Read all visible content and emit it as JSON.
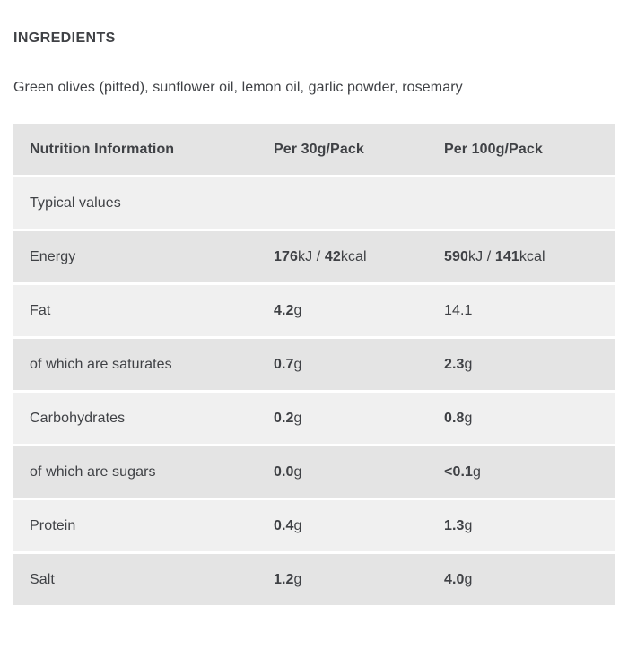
{
  "page": {
    "background": "#ffffff",
    "text_color": "#3f4145"
  },
  "ingredients": {
    "heading": "INGREDIENTS",
    "text": "Green olives (pitted), sunflower oil, lemon oil, garlic powder, rosemary"
  },
  "nutrition_table": {
    "colors": {
      "row_dark": "#e4e4e4",
      "row_light": "#f0f0f0"
    },
    "header": {
      "col_label": "Nutrition Information",
      "col_per30": "Per 30g/Pack",
      "col_per100": "Per 100g/Pack"
    },
    "rows": [
      {
        "label": "Typical values",
        "per30": [],
        "per100": []
      },
      {
        "label": "Energy",
        "per30": [
          {
            "t": "176",
            "b": true
          },
          {
            "t": "kJ / ",
            "b": false
          },
          {
            "t": "42",
            "b": true
          },
          {
            "t": "kcal",
            "b": false
          }
        ],
        "per100": [
          {
            "t": "590",
            "b": true
          },
          {
            "t": "kJ / ",
            "b": false
          },
          {
            "t": "141",
            "b": true
          },
          {
            "t": "kcal",
            "b": false
          }
        ]
      },
      {
        "label": "Fat",
        "per30": [
          {
            "t": "4.2",
            "b": true
          },
          {
            "t": "g",
            "b": false
          }
        ],
        "per100": [
          {
            "t": "14.1",
            "b": false
          }
        ]
      },
      {
        "label": "of which are saturates",
        "per30": [
          {
            "t": "0.7",
            "b": true
          },
          {
            "t": "g",
            "b": false
          }
        ],
        "per100": [
          {
            "t": "2.3",
            "b": true
          },
          {
            "t": "g",
            "b": false
          }
        ]
      },
      {
        "label": "Carbohydrates",
        "per30": [
          {
            "t": "0.2",
            "b": true
          },
          {
            "t": "g",
            "b": false
          }
        ],
        "per100": [
          {
            "t": "0.8",
            "b": true
          },
          {
            "t": "g",
            "b": false
          }
        ]
      },
      {
        "label": "of which are sugars",
        "per30": [
          {
            "t": "0.0",
            "b": true
          },
          {
            "t": "g",
            "b": false
          }
        ],
        "per100": [
          {
            "t": "<0.1",
            "b": true
          },
          {
            "t": "g",
            "b": false
          }
        ]
      },
      {
        "label": "Protein",
        "per30": [
          {
            "t": "0.4",
            "b": true
          },
          {
            "t": "g",
            "b": false
          }
        ],
        "per100": [
          {
            "t": "1.3",
            "b": true
          },
          {
            "t": "g",
            "b": false
          }
        ]
      },
      {
        "label": "Salt",
        "per30": [
          {
            "t": "1.2",
            "b": true
          },
          {
            "t": "g",
            "b": false
          }
        ],
        "per100": [
          {
            "t": "4.0",
            "b": true
          },
          {
            "t": "g",
            "b": false
          }
        ]
      }
    ]
  }
}
